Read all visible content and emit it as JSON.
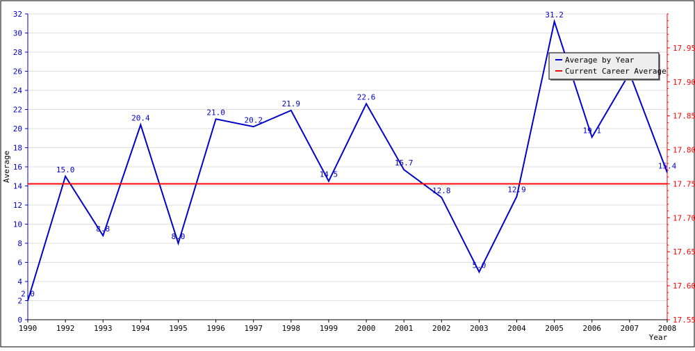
{
  "chart_data": {
    "type": "line",
    "ylabel": "Average",
    "xlabel": "Year",
    "categories": [
      "1990",
      "1992",
      "1993",
      "1994",
      "1995",
      "1996",
      "1997",
      "1998",
      "1999",
      "2000",
      "2001",
      "2002",
      "2003",
      "2004",
      "2005",
      "2006",
      "2007",
      "2008"
    ],
    "y_ticks": [
      "0",
      "2",
      "4",
      "6",
      "8",
      "10",
      "12",
      "14",
      "16",
      "18",
      "20",
      "22",
      "24",
      "26",
      "28",
      "30",
      "32"
    ],
    "y2_ticks": [
      "17.55",
      "17.60",
      "17.65",
      "17.70",
      "17.75",
      "17.80",
      "17.85",
      "17.90",
      "17.95"
    ],
    "ylim": [
      0,
      32
    ],
    "y2lim": [
      17.55,
      18.0
    ],
    "grid": true,
    "legend_position": "top-right",
    "series": [
      {
        "name": "Average by Year",
        "color": "#0000cc",
        "axis": "left",
        "values": [
          2.0,
          15.0,
          8.8,
          20.4,
          8.0,
          21.0,
          20.2,
          21.9,
          14.5,
          22.6,
          15.7,
          12.8,
          5.0,
          12.9,
          31.2,
          19.1,
          25.8,
          15.4
        ],
        "labels": [
          "2.0",
          "15.0",
          "8.8",
          "20.4",
          "8.0",
          "21.0",
          "20.2",
          "21.9",
          "14.5",
          "22.6",
          "15.7",
          "12.8",
          "5.0",
          "12.9",
          "31.2",
          "19.1",
          "",
          "15.4"
        ]
      },
      {
        "name": "Current Career Average",
        "color": "#ff0000",
        "axis": "right",
        "value": 17.75
      }
    ],
    "colors": {
      "left_axis": "#0000cc",
      "right_axis": "#ff0000",
      "x_axis": "#000000",
      "grid": "#dddddd"
    }
  }
}
